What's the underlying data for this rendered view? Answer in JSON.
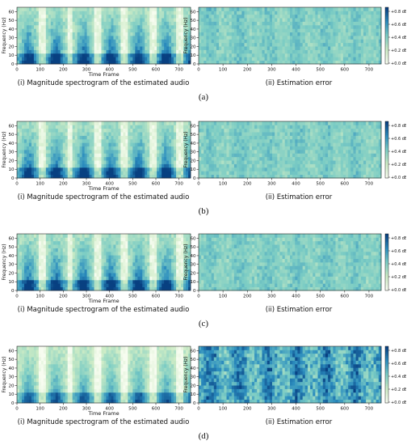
{
  "figure": {
    "rows": [
      {
        "label": "(a)",
        "spec_weight": 1.0,
        "err_weight": 0.35
      },
      {
        "label": "(b)",
        "spec_weight": 1.0,
        "err_weight": 0.35
      },
      {
        "label": "(c)",
        "spec_weight": 1.0,
        "err_weight": 0.35
      },
      {
        "label": "(d)",
        "spec_weight": 0.55,
        "err_weight": 1.0
      }
    ],
    "left_caption": "(i) Magnitude spectrogram of the estimated audio",
    "right_caption": "(ii) Estimation error"
  },
  "chart_data": [
    {
      "type": "heatmap",
      "title": "",
      "xlabel": "Time Frame",
      "ylabel": "Frequency (Hz)",
      "xlim": [
        0,
        750
      ],
      "ylim": [
        0,
        65
      ],
      "xticks": [
        0,
        100,
        200,
        300,
        400,
        500,
        600,
        700
      ],
      "yticks": [
        0,
        10,
        20,
        30,
        40,
        50,
        60
      ],
      "colormap": [
        "#f7fcf0",
        "#ccebc5",
        "#7bccc4",
        "#2b8cbe",
        "#084081"
      ]
    },
    {
      "type": "heatmap",
      "title": "",
      "xlabel": "",
      "ylabel": "Frequency (Hz)",
      "xlim": [
        0,
        750
      ],
      "ylim": [
        0,
        65
      ],
      "xticks": [
        0,
        100,
        200,
        300,
        400,
        500,
        600,
        700
      ],
      "yticks": [
        0,
        10,
        20,
        30,
        40,
        50,
        60
      ],
      "colorbar_ticks": [
        "+0.0 dB",
        "+0.2 dB",
        "+0.4 dB",
        "+0.6 dB",
        "+0.8 dB"
      ],
      "colormap": [
        "#f7fcf0",
        "#ccebc5",
        "#7bccc4",
        "#2b8cbe",
        "#084081"
      ]
    }
  ]
}
